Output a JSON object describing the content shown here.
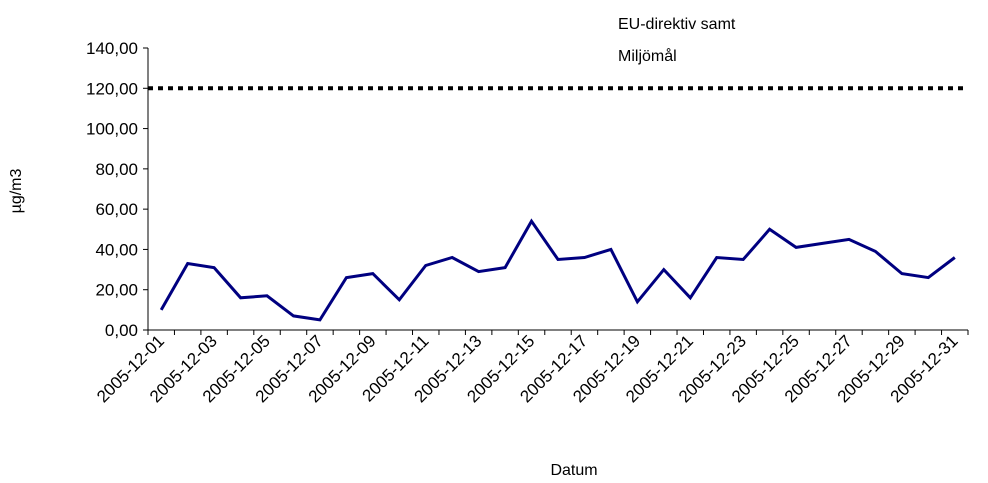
{
  "chart_data": {
    "type": "line",
    "xlabel": "Datum",
    "ylabel": "µg/m3",
    "ylim": [
      0,
      140
    ],
    "yticks": [
      "0,00",
      "20,00",
      "40,00",
      "60,00",
      "80,00",
      "100,00",
      "120,00",
      "140,00"
    ],
    "ytick_values": [
      0,
      20,
      40,
      60,
      80,
      100,
      120,
      140
    ],
    "xtick_labels": [
      "2005-12-01",
      "2005-12-03",
      "2005-12-05",
      "2005-12-07",
      "2005-12-09",
      "2005-12-11",
      "2005-12-13",
      "2005-12-15",
      "2005-12-17",
      "2005-12-19",
      "2005-12-21",
      "2005-12-23",
      "2005-12-25",
      "2005-12-27",
      "2005-12-29",
      "2005-12-31"
    ],
    "x": [
      "2005-12-01",
      "2005-12-02",
      "2005-12-03",
      "2005-12-04",
      "2005-12-05",
      "2005-12-06",
      "2005-12-07",
      "2005-12-08",
      "2005-12-09",
      "2005-12-10",
      "2005-12-11",
      "2005-12-12",
      "2005-12-13",
      "2005-12-14",
      "2005-12-15",
      "2005-12-16",
      "2005-12-17",
      "2005-12-18",
      "2005-12-19",
      "2005-12-20",
      "2005-12-21",
      "2005-12-22",
      "2005-12-23",
      "2005-12-24",
      "2005-12-25",
      "2005-12-26",
      "2005-12-27",
      "2005-12-28",
      "2005-12-29",
      "2005-12-30",
      "2005-12-31"
    ],
    "series": [
      {
        "values": [
          10,
          33,
          31,
          16,
          17,
          7,
          5,
          26,
          28,
          15,
          32,
          36,
          29,
          31,
          54,
          35,
          36,
          40,
          14,
          30,
          16,
          36,
          35,
          50,
          41,
          43,
          45,
          39,
          28,
          26,
          36
        ],
        "color": "#000080",
        "style": "solid"
      }
    ],
    "reference_lines": [
      {
        "label": "EU-direktiv samt Miljömål",
        "label_lines": [
          "EU-direktiv samt",
          "Miljömål"
        ],
        "y": 120,
        "color": "#000000",
        "style": "dotted"
      }
    ],
    "grid": false,
    "legend": "none"
  }
}
